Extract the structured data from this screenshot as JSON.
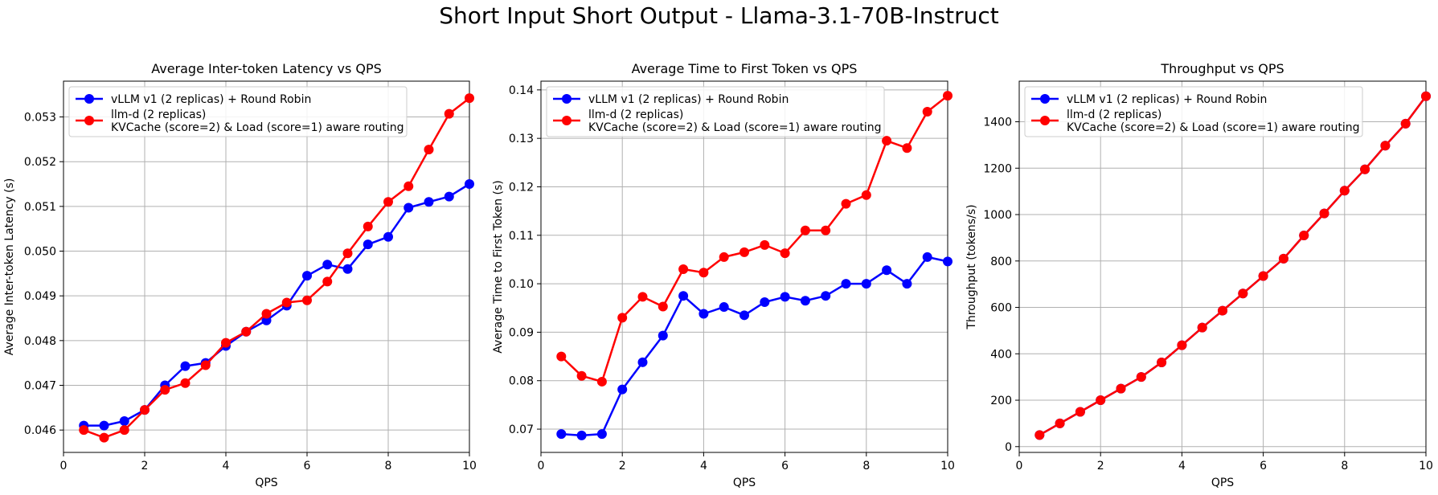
{
  "figure": {
    "title": "Short Input Short Output - Llama-3.1-70B-Instruct"
  },
  "colors": {
    "vllm": "#0000ff",
    "llmd": "#ff0000",
    "grid": "#b0b0b0"
  },
  "legend": {
    "vllm": "vLLM v1 (2 replicas) + Round Robin",
    "llmd_line1": "llm-d (2 replicas)",
    "llmd_line2": "KVCache (score=2) & Load (score=1) aware routing"
  },
  "chart_data": [
    {
      "type": "line",
      "title": "Average Inter-token Latency vs QPS",
      "xlabel": "QPS",
      "ylabel": "Average Inter-token Latency (s)",
      "xlim": [
        0,
        10
      ],
      "ylim": [
        0.0455,
        0.0538
      ],
      "xticks": [
        0,
        2,
        4,
        6,
        8,
        10
      ],
      "yticks": [
        0.046,
        0.047,
        0.048,
        0.049,
        0.05,
        0.051,
        0.052,
        0.053
      ],
      "ytick_labels": [
        "0.046",
        "0.047",
        "0.048",
        "0.049",
        "0.050",
        "0.051",
        "0.052",
        "0.053"
      ],
      "grid": true,
      "legend_position": "upper-left",
      "x": [
        0.5,
        1,
        1.5,
        2,
        2.5,
        3,
        3.5,
        4,
        4.5,
        5,
        5.5,
        6,
        6.5,
        7,
        7.5,
        8,
        8.5,
        9,
        9.5,
        10
      ],
      "series": [
        {
          "name": "vLLM v1 (2 replicas) + Round Robin",
          "color": "#0000ff",
          "values": [
            0.0461,
            0.0461,
            0.0462,
            0.04645,
            0.047,
            0.04743,
            0.0475,
            0.04788,
            0.0482,
            0.04845,
            0.04878,
            0.04945,
            0.0497,
            0.0496,
            0.05015,
            0.05032,
            0.05097,
            0.0511,
            0.05122,
            0.0515
          ]
        },
        {
          "name": "llm-d (2 replicas) KVCache (score=2) & Load (score=1) aware routing",
          "color": "#ff0000",
          "values": [
            0.046,
            0.04583,
            0.046,
            0.04645,
            0.0469,
            0.04705,
            0.04745,
            0.04795,
            0.0482,
            0.0486,
            0.04885,
            0.0489,
            0.04932,
            0.04995,
            0.05055,
            0.0511,
            0.05145,
            0.05227,
            0.05307,
            0.05342
          ]
        }
      ]
    },
    {
      "type": "line",
      "title": "Average Time to First Token vs QPS",
      "xlabel": "QPS",
      "ylabel": "Average Time to First Token (s)",
      "xlim": [
        0,
        10
      ],
      "ylim": [
        0.0652,
        0.1418
      ],
      "xticks": [
        0,
        2,
        4,
        6,
        8,
        10
      ],
      "yticks": [
        0.07,
        0.08,
        0.09,
        0.1,
        0.11,
        0.12,
        0.13,
        0.14
      ],
      "ytick_labels": [
        "0.07",
        "0.08",
        "0.09",
        "0.10",
        "0.11",
        "0.12",
        "0.13",
        "0.14"
      ],
      "grid": true,
      "legend_position": "upper-left",
      "x": [
        0.5,
        1,
        1.5,
        2,
        2.5,
        3,
        3.5,
        4,
        4.5,
        5,
        5.5,
        6,
        6.5,
        7,
        7.5,
        8,
        8.5,
        9,
        9.5,
        10
      ],
      "series": [
        {
          "name": "vLLM v1 (2 replicas) + Round Robin",
          "color": "#0000ff",
          "values": [
            0.069,
            0.0687,
            0.069,
            0.0782,
            0.0838,
            0.0893,
            0.0975,
            0.0938,
            0.0952,
            0.0935,
            0.0962,
            0.0973,
            0.0965,
            0.0975,
            0.1,
            0.1,
            0.1028,
            0.1,
            0.1055,
            0.1046
          ]
        },
        {
          "name": "llm-d (2 replicas) KVCache (score=2) & Load (score=1) aware routing",
          "color": "#ff0000",
          "values": [
            0.085,
            0.081,
            0.0798,
            0.093,
            0.0973,
            0.0953,
            0.103,
            0.1023,
            0.1055,
            0.1065,
            0.108,
            0.1063,
            0.111,
            0.111,
            0.1165,
            0.1183,
            0.1295,
            0.128,
            0.1355,
            0.1388
          ]
        }
      ]
    },
    {
      "type": "line",
      "title": "Throughput vs QPS",
      "xlabel": "QPS",
      "ylabel": "Throughput (tokens/s)",
      "xlim": [
        0,
        10
      ],
      "ylim": [
        -25,
        1575
      ],
      "xticks": [
        0,
        2,
        4,
        6,
        8,
        10
      ],
      "yticks": [
        0,
        200,
        400,
        600,
        800,
        1000,
        1200,
        1400
      ],
      "ytick_labels": [
        "0",
        "200",
        "400",
        "600",
        "800",
        "1000",
        "1200",
        "1400"
      ],
      "grid": true,
      "legend_position": "upper-left",
      "x": [
        0.5,
        1,
        1.5,
        2,
        2.5,
        3,
        3.5,
        4,
        4.5,
        5,
        5.5,
        6,
        6.5,
        7,
        7.5,
        8,
        8.5,
        9,
        9.5,
        10
      ],
      "series": [
        {
          "name": "vLLM v1 (2 replicas) + Round Robin",
          "color": "#0000ff",
          "values": [
            50,
            100,
            150,
            200,
            250,
            300,
            363,
            437,
            513,
            586,
            660,
            735,
            810,
            910,
            1005,
            1103,
            1195,
            1297,
            1392,
            1510
          ]
        },
        {
          "name": "llm-d (2 replicas) KVCache (score=2) & Load (score=1) aware routing",
          "color": "#ff0000",
          "values": [
            50,
            100,
            150,
            200,
            250,
            300,
            363,
            437,
            513,
            586,
            660,
            735,
            810,
            910,
            1005,
            1103,
            1195,
            1297,
            1392,
            1510
          ]
        }
      ]
    }
  ]
}
